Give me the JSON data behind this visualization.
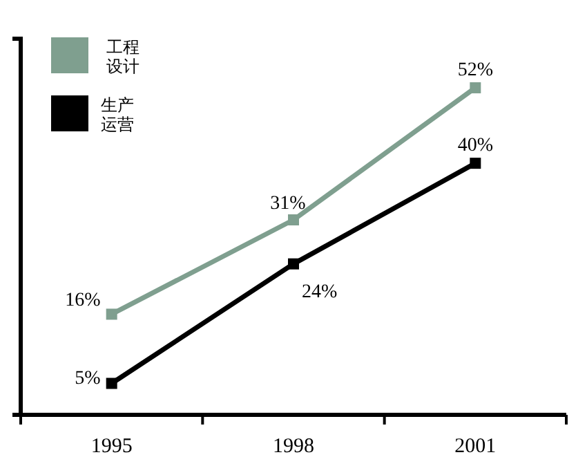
{
  "chart_data": {
    "type": "line",
    "categories": [
      "1995",
      "1998",
      "2001"
    ],
    "series": [
      {
        "name": "工程设计",
        "color": "#7f9f8f",
        "values": [
          16,
          31,
          52
        ],
        "value_labels": [
          "16%",
          "31%",
          "52%"
        ]
      },
      {
        "name": "生产运营",
        "color": "#000000",
        "values": [
          5,
          24,
          40
        ],
        "value_labels": [
          "5%",
          "24%",
          "40%"
        ]
      }
    ],
    "marker": "square",
    "line_style": "solid",
    "legend": "top left",
    "grid": false
  }
}
